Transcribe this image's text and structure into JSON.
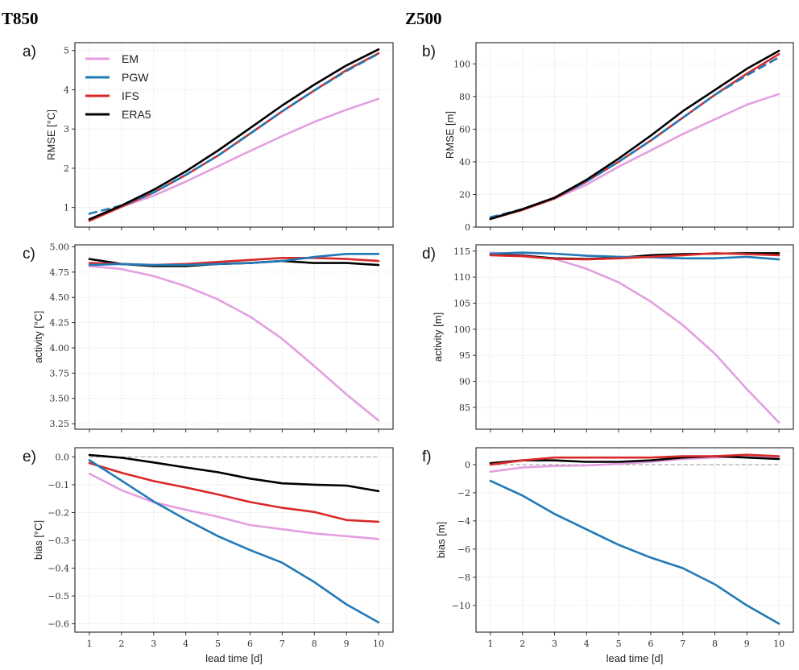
{
  "figure": {
    "column_titles": [
      "T850",
      "Z500"
    ]
  },
  "legend": {
    "placement": "top-left of panel a",
    "entries": [
      {
        "name": "EM",
        "color": "#e39fe0",
        "style": "solid"
      },
      {
        "name": "PGW",
        "color": "#2179b6",
        "style": "dashed in RMSE panels, solid elsewhere"
      },
      {
        "name": "IFS",
        "color": "#d92a2a",
        "style": "solid"
      },
      {
        "name": "ERA5",
        "color": "#000000",
        "style": "solid"
      }
    ]
  },
  "chart_data": [
    {
      "panel": "a)",
      "type": "line",
      "column": "T850",
      "ylabel": "RMSE [°C]",
      "xlabel": "",
      "ylim": [
        0.5,
        5.2
      ],
      "yticks": [
        1,
        2,
        3,
        4,
        5
      ],
      "ytick_labels": [
        "1",
        "2",
        "3",
        "4",
        "5"
      ],
      "x": [
        1,
        2,
        3,
        4,
        5,
        6,
        7,
        8,
        9,
        10
      ],
      "xlim": [
        0.55,
        10.45
      ],
      "grid": true,
      "legend": "top-left",
      "series": [
        {
          "name": "EM",
          "values": [
            0.67,
            1.02,
            1.3,
            1.66,
            2.05,
            2.44,
            2.82,
            3.18,
            3.49,
            3.77
          ]
        },
        {
          "name": "IFS",
          "values": [
            0.66,
            1.02,
            1.38,
            1.83,
            2.32,
            2.88,
            3.45,
            3.98,
            4.5,
            4.93
          ]
        },
        {
          "name": "PGW",
          "values": [
            0.84,
            1.05,
            1.38,
            1.83,
            2.32,
            2.88,
            3.45,
            3.98,
            4.48,
            4.92
          ],
          "dashed": true
        },
        {
          "name": "ERA5",
          "values": [
            0.7,
            1.05,
            1.45,
            1.92,
            2.45,
            3.02,
            3.6,
            4.13,
            4.62,
            5.03
          ]
        }
      ]
    },
    {
      "panel": "b)",
      "type": "line",
      "column": "Z500",
      "ylabel": "RMSE [m]",
      "xlabel": "",
      "ylim": [
        0,
        113
      ],
      "yticks": [
        0,
        20,
        40,
        60,
        80,
        100
      ],
      "ytick_labels": [
        "0",
        "20",
        "40",
        "60",
        "80",
        "100"
      ],
      "x": [
        1,
        2,
        3,
        4,
        5,
        6,
        7,
        8,
        9,
        10
      ],
      "xlim": [
        0.55,
        10.45
      ],
      "grid": true,
      "series": [
        {
          "name": "EM",
          "values": [
            5.5,
            11,
            17.5,
            26,
            37,
            47,
            57,
            66,
            75,
            81.5
          ]
        },
        {
          "name": "IFS",
          "values": [
            5,
            10.5,
            17.5,
            28,
            40,
            53,
            67,
            81,
            94,
            106
          ]
        },
        {
          "name": "PGW",
          "values": [
            6,
            11,
            18,
            28,
            40,
            53,
            67,
            81,
            93,
            104
          ],
          "dashed": true
        },
        {
          "name": "ERA5",
          "values": [
            5,
            11,
            18,
            29,
            42,
            56,
            71,
            84,
            97,
            108
          ]
        }
      ]
    },
    {
      "panel": "c)",
      "type": "line",
      "column": "T850",
      "ylabel": "activity [°C]",
      "xlabel": "",
      "ylim": [
        3.195,
        5.02
      ],
      "yticks": [
        3.25,
        3.5,
        3.75,
        4.0,
        4.25,
        4.5,
        4.75,
        5.0
      ],
      "ytick_labels": [
        "3.25",
        "3.50",
        "3.75",
        "4.00",
        "4.25",
        "4.50",
        "4.75",
        "5.00"
      ],
      "x": [
        1,
        2,
        3,
        4,
        5,
        6,
        7,
        8,
        9,
        10
      ],
      "xlim": [
        0.55,
        10.45
      ],
      "grid": true,
      "series": [
        {
          "name": "EM",
          "values": [
            4.81,
            4.78,
            4.71,
            4.61,
            4.48,
            4.31,
            4.09,
            3.82,
            3.54,
            3.28
          ]
        },
        {
          "name": "ERA5",
          "values": [
            4.88,
            4.83,
            4.81,
            4.81,
            4.83,
            4.84,
            4.86,
            4.84,
            4.84,
            4.82
          ]
        },
        {
          "name": "IFS",
          "values": [
            4.84,
            4.83,
            4.82,
            4.83,
            4.85,
            4.87,
            4.89,
            4.89,
            4.88,
            4.86
          ]
        },
        {
          "name": "PGW",
          "values": [
            4.82,
            4.83,
            4.82,
            4.82,
            4.83,
            4.84,
            4.86,
            4.9,
            4.93,
            4.93
          ]
        }
      ]
    },
    {
      "panel": "d)",
      "type": "line",
      "column": "Z500",
      "ylabel": "activity [m]",
      "xlabel": "",
      "ylim": [
        80.8,
        116.2
      ],
      "yticks": [
        85,
        90,
        95,
        100,
        105,
        110,
        115
      ],
      "ytick_labels": [
        "85",
        "90",
        "95",
        "100",
        "105",
        "110",
        "115"
      ],
      "x": [
        1,
        2,
        3,
        4,
        5,
        6,
        7,
        8,
        9,
        10
      ],
      "xlim": [
        0.55,
        10.45
      ],
      "grid": true,
      "series": [
        {
          "name": "EM",
          "values": [
            114.7,
            114.3,
            113.5,
            111.6,
            109.0,
            105.3,
            100.8,
            95.3,
            88.5,
            82.1
          ]
        },
        {
          "name": "ERA5",
          "values": [
            114.3,
            114.1,
            113.6,
            113.5,
            113.7,
            114.2,
            114.4,
            114.5,
            114.6,
            114.6
          ]
        },
        {
          "name": "PGW",
          "values": [
            114.5,
            114.7,
            114.5,
            114.1,
            113.9,
            113.8,
            113.6,
            113.6,
            113.9,
            113.4
          ]
        },
        {
          "name": "IFS",
          "values": [
            114.2,
            114.0,
            113.5,
            113.4,
            113.6,
            113.9,
            114.2,
            114.6,
            114.4,
            114.2
          ]
        }
      ]
    },
    {
      "panel": "e)",
      "type": "line",
      "column": "T850",
      "ylabel": "bias [°C]",
      "xlabel": "lead time [d]",
      "ylim": [
        -0.63,
        0.033
      ],
      "yticks": [
        -0.6,
        -0.5,
        -0.4,
        -0.3,
        -0.2,
        -0.1,
        0.0
      ],
      "ytick_labels": [
        "−0.6",
        "−0.5",
        "−0.4",
        "−0.3",
        "−0.2",
        "−0.1",
        "0.0"
      ],
      "x": [
        1,
        2,
        3,
        4,
        5,
        6,
        7,
        8,
        9,
        10
      ],
      "xlim": [
        0.55,
        10.45
      ],
      "grid": true,
      "xtick_labels": [
        "1",
        "2",
        "3",
        "4",
        "5",
        "6",
        "7",
        "8",
        "9",
        "10"
      ],
      "reference_line": 0,
      "series": [
        {
          "name": "EM",
          "values": [
            -0.06,
            -0.12,
            -0.163,
            -0.19,
            -0.215,
            -0.245,
            -0.26,
            -0.275,
            -0.285,
            -0.295
          ]
        },
        {
          "name": "IFS",
          "values": [
            -0.022,
            -0.057,
            -0.087,
            -0.11,
            -0.135,
            -0.162,
            -0.183,
            -0.198,
            -0.227,
            -0.233
          ]
        },
        {
          "name": "ERA5",
          "values": [
            0.007,
            -0.003,
            -0.02,
            -0.038,
            -0.055,
            -0.078,
            -0.095,
            -0.1,
            -0.103,
            -0.123
          ]
        },
        {
          "name": "PGW",
          "values": [
            -0.012,
            -0.085,
            -0.16,
            -0.225,
            -0.285,
            -0.335,
            -0.38,
            -0.45,
            -0.53,
            -0.595
          ]
        }
      ]
    },
    {
      "panel": "f)",
      "type": "line",
      "column": "Z500",
      "ylabel": "bias [m]",
      "xlabel": "lead time [d]",
      "ylim": [
        -11.9,
        1.2
      ],
      "yticks": [
        -10,
        -8,
        -6,
        -4,
        -2,
        0
      ],
      "ytick_labels": [
        "−10",
        "−8",
        "−6",
        "−4",
        "−2",
        "0"
      ],
      "x": [
        1,
        2,
        3,
        4,
        5,
        6,
        7,
        8,
        9,
        10
      ],
      "xlim": [
        0.55,
        10.45
      ],
      "grid": true,
      "xtick_labels": [
        "1",
        "2",
        "3",
        "4",
        "5",
        "6",
        "7",
        "8",
        "9",
        "10"
      ],
      "reference_line": 0,
      "series": [
        {
          "name": "EM",
          "values": [
            -0.5,
            -0.2,
            -0.1,
            -0.05,
            0.05,
            0.2,
            0.4,
            0.5,
            0.6,
            0.5
          ]
        },
        {
          "name": "PGW",
          "values": [
            -1.15,
            -2.2,
            -3.5,
            -4.6,
            -5.7,
            -6.6,
            -7.35,
            -8.5,
            -10.0,
            -11.3
          ]
        },
        {
          "name": "ERA5",
          "values": [
            0.1,
            0.3,
            0.3,
            0.2,
            0.2,
            0.3,
            0.5,
            0.6,
            0.5,
            0.4
          ]
        },
        {
          "name": "IFS",
          "values": [
            0.0,
            0.3,
            0.5,
            0.5,
            0.5,
            0.5,
            0.6,
            0.6,
            0.7,
            0.6
          ]
        }
      ]
    }
  ]
}
